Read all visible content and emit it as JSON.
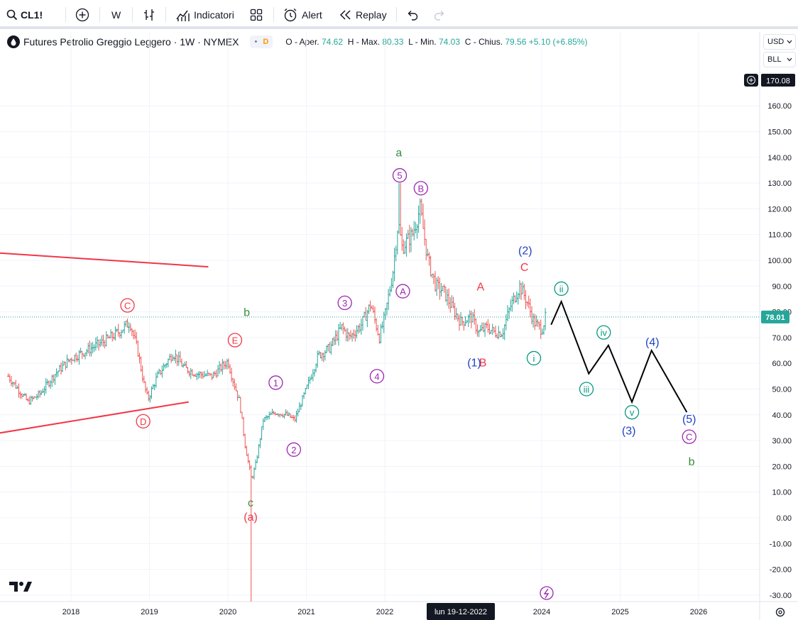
{
  "toolbar": {
    "symbol": "CL1!",
    "interval": "W",
    "indicators": "Indicatori",
    "alert": "Alert",
    "replay": "Replay",
    "icons": [
      "search-icon",
      "add-symbol-icon",
      "bar-style-icon",
      "indicators-icon",
      "layouts-icon",
      "alert-icon",
      "replay-icon",
      "undo-icon",
      "redo-icon"
    ]
  },
  "legend": {
    "title": "Futures Petrolio Greggio Leggero · 1W · NYMEX",
    "flag_dot": "•",
    "flag_d": "D",
    "o_label": "O - Aper.",
    "o": "74.62",
    "h_label": "H - Max.",
    "h": "80.33",
    "l_label": "L - Min.",
    "l": "74.03",
    "c_label": "C - Chius.",
    "c": "79.56",
    "change": "+5.10 (+6.85%)"
  },
  "right_panel": {
    "currency": "USD",
    "unit": "BLL",
    "plus_price": "170.08"
  },
  "colors": {
    "bull": "#26a69a",
    "bear": "#ef5350",
    "wave_purple": "#9c27b0",
    "wave_red": "#f23645",
    "wave_green": "#388e3c",
    "wave_blue": "#2142c5",
    "wave_teal": "#089981",
    "line_red": "#f23645",
    "projection": "#000000"
  },
  "chart_data": {
    "type": "ohlc",
    "title": "Futures Petrolio Greggio Leggero · 1W · NYMEX",
    "ylim": [
      -33,
      181
    ],
    "y_ticks": [
      160,
      150,
      140,
      130,
      120,
      110,
      100,
      90,
      80,
      70,
      60,
      50,
      40,
      30,
      20,
      10,
      0,
      -10,
      -20,
      -30
    ],
    "x_ticks": [
      2018,
      2019,
      2020,
      2021,
      2022,
      2024,
      2025,
      2026
    ],
    "crosshair_date": "lun 19-12-2022",
    "last_price": "78.01",
    "last_value": 78.01,
    "approx_weekly_path": [
      [
        2017.2,
        55
      ],
      [
        2017.45,
        45
      ],
      [
        2017.6,
        48
      ],
      [
        2017.8,
        56
      ],
      [
        2018.0,
        62
      ],
      [
        2018.2,
        65
      ],
      [
        2018.45,
        69
      ],
      [
        2018.6,
        72
      ],
      [
        2018.75,
        76
      ],
      [
        2018.85,
        65
      ],
      [
        2018.93,
        52
      ],
      [
        2018.98,
        46
      ],
      [
        2019.1,
        55
      ],
      [
        2019.3,
        64
      ],
      [
        2019.45,
        58
      ],
      [
        2019.6,
        56
      ],
      [
        2019.8,
        55
      ],
      [
        2020.0,
        61
      ],
      [
        2020.05,
        55
      ],
      [
        2020.15,
        45
      ],
      [
        2020.22,
        28
      ],
      [
        2020.3,
        15
      ],
      [
        2020.35,
        20
      ],
      [
        2020.45,
        38
      ],
      [
        2020.6,
        41
      ],
      [
        2020.75,
        40
      ],
      [
        2020.85,
        38
      ],
      [
        2021.0,
        50
      ],
      [
        2021.15,
        63
      ],
      [
        2021.3,
        66
      ],
      [
        2021.45,
        74
      ],
      [
        2021.55,
        70
      ],
      [
        2021.7,
        75
      ],
      [
        2021.82,
        83
      ],
      [
        2021.93,
        70
      ],
      [
        2022.0,
        78
      ],
      [
        2022.1,
        95
      ],
      [
        2022.17,
        115
      ],
      [
        2022.22,
        105
      ],
      [
        2022.35,
        110
      ],
      [
        2022.45,
        120
      ],
      [
        2022.55,
        100
      ],
      [
        2022.65,
        90
      ],
      [
        2022.75,
        88
      ],
      [
        2022.85,
        82
      ],
      [
        2022.97,
        76
      ],
      [
        2023.1,
        78
      ],
      [
        2023.2,
        72
      ],
      [
        2023.3,
        74
      ],
      [
        2023.4,
        72
      ],
      [
        2023.5,
        72
      ],
      [
        2023.6,
        82
      ],
      [
        2023.72,
        90
      ],
      [
        2023.8,
        85
      ],
      [
        2023.9,
        76
      ],
      [
        2024.0,
        73
      ],
      [
        2024.05,
        78
      ]
    ],
    "crash_low": -37,
    "trendlines": [
      {
        "x": [
          2017.0,
          2019.75
        ],
        "y": [
          103,
          97.5
        ]
      },
      {
        "x": [
          2017.0,
          2019.5
        ],
        "y": [
          32.5,
          45
        ]
      }
    ],
    "projection": {
      "x": [
        2024.12,
        2024.25,
        2024.6,
        2024.85,
        2025.15,
        2025.4,
        2025.85
      ],
      "y": [
        75,
        84,
        56,
        67,
        45,
        65,
        41
      ]
    },
    "wave_labels": [
      {
        "text": "C",
        "x": 2018.72,
        "y": 82.5,
        "style": "circle",
        "color": "wave_red"
      },
      {
        "text": "D",
        "x": 2018.92,
        "y": 37.5,
        "style": "circle",
        "color": "wave_red"
      },
      {
        "text": "E",
        "x": 2020.09,
        "y": 69,
        "style": "circle",
        "color": "wave_red"
      },
      {
        "text": "b",
        "x": 2020.24,
        "y": 80,
        "style": "plain",
        "color": "wave_green"
      },
      {
        "text": "1",
        "x": 2020.61,
        "y": 52.5,
        "style": "circle",
        "color": "wave_purple"
      },
      {
        "text": "2",
        "x": 2020.84,
        "y": 26.5,
        "style": "circle",
        "color": "wave_purple"
      },
      {
        "text": "c",
        "x": 2020.29,
        "y": 6,
        "style": "plain",
        "color": "wave_green"
      },
      {
        "text": "(a)",
        "x": 2020.29,
        "y": 0.5,
        "style": "plain",
        "color": "wave_red"
      },
      {
        "text": "3",
        "x": 2021.49,
        "y": 83.5,
        "style": "circle",
        "color": "wave_purple"
      },
      {
        "text": "4",
        "x": 2021.9,
        "y": 55,
        "style": "circle",
        "color": "wave_purple"
      },
      {
        "text": "a",
        "x": 2022.18,
        "y": 142,
        "style": "plain",
        "color": "wave_green"
      },
      {
        "text": "5",
        "x": 2022.19,
        "y": 133,
        "style": "circle",
        "color": "wave_purple"
      },
      {
        "text": "B",
        "x": 2022.46,
        "y": 128,
        "style": "circle",
        "color": "wave_purple"
      },
      {
        "text": "A",
        "x": 2022.23,
        "y": 88,
        "style": "circle",
        "color": "wave_purple"
      },
      {
        "text": "A",
        "x": 2023.22,
        "y": 90,
        "style": "plain",
        "color": "wave_red"
      },
      {
        "text": "B",
        "x": 2023.25,
        "y": 60.5,
        "style": "plain",
        "color": "wave_red"
      },
      {
        "text": "(1)",
        "x": 2023.14,
        "y": 60.5,
        "style": "plain",
        "color": "wave_blue"
      },
      {
        "text": "(2)",
        "x": 2023.79,
        "y": 104,
        "style": "plain",
        "color": "wave_blue"
      },
      {
        "text": "C",
        "x": 2023.78,
        "y": 97.5,
        "style": "plain",
        "color": "wave_red"
      },
      {
        "text": "i",
        "x": 2023.9,
        "y": 62,
        "style": "circle",
        "color": "wave_teal"
      },
      {
        "text": "ii",
        "x": 2024.25,
        "y": 89,
        "style": "circle",
        "color": "wave_teal"
      },
      {
        "text": "iii",
        "x": 2024.57,
        "y": 50,
        "style": "circle",
        "color": "wave_teal"
      },
      {
        "text": "iv",
        "x": 2024.79,
        "y": 72,
        "style": "circle",
        "color": "wave_teal"
      },
      {
        "text": "v",
        "x": 2025.15,
        "y": 41,
        "style": "circle",
        "color": "wave_teal"
      },
      {
        "text": "(3)",
        "x": 2025.11,
        "y": 34,
        "style": "plain",
        "color": "wave_blue"
      },
      {
        "text": "(4)",
        "x": 2025.41,
        "y": 68.5,
        "style": "plain",
        "color": "wave_blue"
      },
      {
        "text": "(5)",
        "x": 2025.88,
        "y": 38.5,
        "style": "plain",
        "color": "wave_blue"
      },
      {
        "text": "C",
        "x": 2025.88,
        "y": 31.5,
        "style": "circle",
        "color": "wave_purple"
      },
      {
        "text": "b",
        "x": 2025.91,
        "y": 22,
        "style": "plain",
        "color": "wave_green"
      }
    ]
  }
}
